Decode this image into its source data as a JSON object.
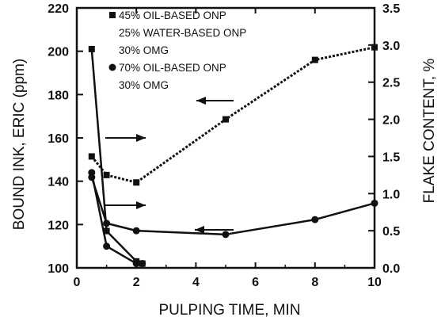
{
  "chart_data": {
    "type": "line",
    "title": "",
    "xlabel": "PULPING TIME, MIN",
    "ylabel_left": "BOUND INK, ERIC (ppm)",
    "ylabel_right": "FLAKE CONTENT, %",
    "xlim": [
      0,
      10
    ],
    "ylim_left": [
      100,
      220
    ],
    "ylim_right": [
      0.0,
      3.5
    ],
    "x_ticks": [
      "0",
      "2",
      "4",
      "6",
      "8",
      "10"
    ],
    "y_left_ticks": [
      "100",
      "120",
      "140",
      "160",
      "180",
      "200",
      "220"
    ],
    "y_right_ticks": [
      "0.0",
      "0.5",
      "1.0",
      "1.5",
      "2.0",
      "2.5",
      "3.0",
      "3.5"
    ],
    "grid": false,
    "legend": [
      {
        "marker": "square",
        "lines": [
          "45% OIL-BASED ONP",
          "25% WATER-BASED ONP",
          "30% OMG"
        ]
      },
      {
        "marker": "circle",
        "lines": [
          "70% OIL-BASED ONP",
          "30% OMG"
        ]
      }
    ],
    "series": [
      {
        "marker": "square",
        "axis": "right",
        "style": "dotted",
        "x": [
          0.5,
          1,
          2,
          5,
          8,
          10
        ],
        "y": [
          1.5,
          1.25,
          1.15,
          2.0,
          2.8,
          2.97
        ]
      },
      {
        "marker": "circle",
        "axis": "right",
        "style": "solid",
        "x": [
          0.5,
          1,
          2,
          5,
          8,
          10
        ],
        "y": [
          1.22,
          0.6,
          0.5,
          0.45,
          0.65,
          0.87
        ]
      },
      {
        "marker": "square",
        "axis": "left",
        "style": "solid",
        "x": [
          0.5,
          1,
          2,
          2.2
        ],
        "y": [
          201,
          117,
          103,
          102
        ]
      },
      {
        "marker": "circle",
        "axis": "left",
        "style": "solid",
        "x": [
          0.5,
          1,
          2,
          2.2
        ],
        "y": [
          144,
          110,
          102,
          102
        ]
      }
    ]
  }
}
